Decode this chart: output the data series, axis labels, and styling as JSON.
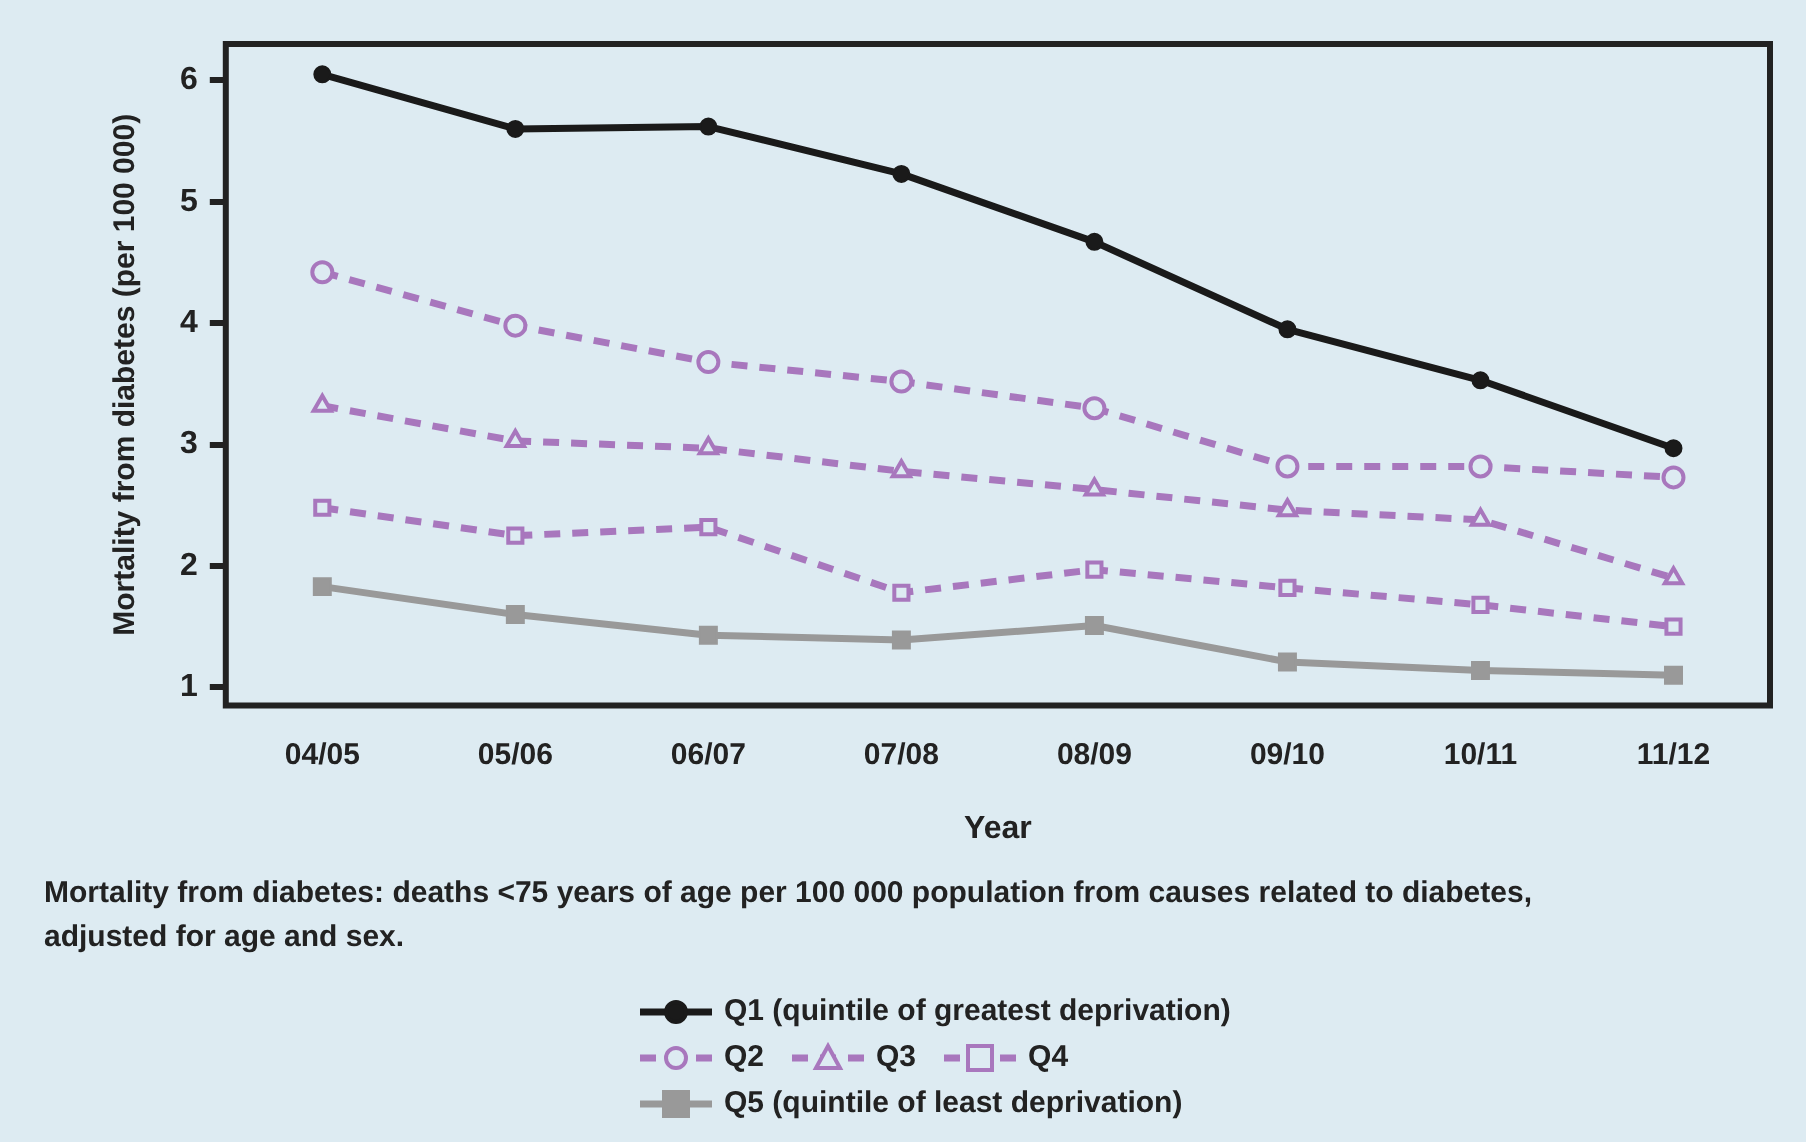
{
  "chart_data": {
    "type": "line",
    "xlabel": "Year",
    "ylabel": "Mortality from diabetes (per 100 000)",
    "categories": [
      "04/05",
      "05/06",
      "06/07",
      "07/08",
      "08/09",
      "09/10",
      "10/11",
      "11/12"
    ],
    "ylim": [
      0.85,
      6.3
    ],
    "yticks": [
      1,
      2,
      3,
      4,
      5,
      6
    ],
    "grid": false,
    "legend": "bottom",
    "annotations": [
      "Mortality from diabetes: deaths <75 years of age per 100 000 population from causes related to diabetes, adjusted for age and sex."
    ],
    "series": [
      {
        "name": "Q1 (quintile of greatest deprivation)",
        "color": "#1a1a1a",
        "marker": "circle",
        "line_style": "solid",
        "values": [
          6.05,
          5.6,
          5.62,
          5.23,
          4.67,
          3.95,
          3.53,
          2.97
        ]
      },
      {
        "name": "Q2",
        "color": "#a877bd",
        "marker": "circle",
        "line_style": "dashed",
        "values": [
          4.42,
          3.98,
          3.68,
          3.52,
          3.3,
          2.82,
          2.82,
          2.73
        ]
      },
      {
        "name": "Q3",
        "color": "#a877bd",
        "marker": "triangle",
        "line_style": "dashed",
        "values": [
          3.32,
          3.03,
          2.97,
          2.78,
          2.63,
          2.46,
          2.38,
          1.9
        ]
      },
      {
        "name": "Q4",
        "color": "#a877bd",
        "marker": "square",
        "line_style": "dashed",
        "values": [
          2.48,
          2.25,
          2.32,
          1.78,
          1.97,
          1.82,
          1.68,
          1.5
        ]
      },
      {
        "name": "Q5 (quintile of least deprivation)",
        "color": "#999999",
        "marker": "square",
        "line_style": "solid",
        "values": [
          1.83,
          1.6,
          1.43,
          1.39,
          1.51,
          1.21,
          1.14,
          1.1
        ]
      }
    ]
  }
}
